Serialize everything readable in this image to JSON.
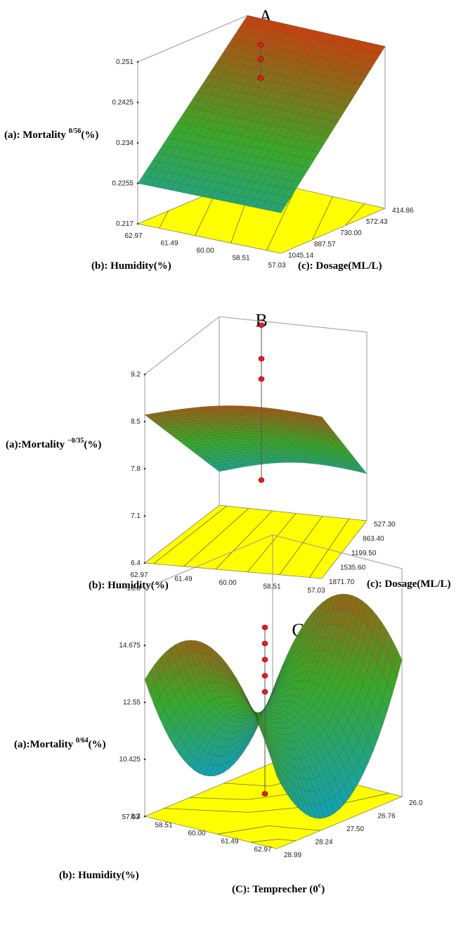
{
  "chart_data": [
    {
      "panel": "A",
      "type": "surface",
      "z_label": "(a): Mortality",
      "z_label_sup": "0/56",
      "z_label_unit": "(%)",
      "x_label": "(b): Humidity(%)",
      "y_label": "(c): Dosage(ML/L)",
      "z_ticks": [
        "0.251",
        "0.2425",
        "0.234",
        "0.2255",
        "0.217"
      ],
      "x_ticks": [
        "62.97",
        "61.49",
        "60.00",
        "58.51",
        "57.03"
      ],
      "y_ticks": [
        "1045.14",
        "887.57",
        "730.00",
        "572.43",
        "414.86"
      ],
      "zlim": [
        0.217,
        0.251
      ],
      "surface_corners": {
        "humidity_62.97_dosage_1045.14": 0.2255,
        "humidity_57.03_dosage_1045.14": 0.2255,
        "humidity_62.97_dosage_414.86": 0.251,
        "humidity_57.03_dosage_414.86": 0.251
      },
      "design_points_z": [
        0.245,
        0.242,
        0.238
      ]
    },
    {
      "panel": "B",
      "type": "surface",
      "z_label": "(a):Mortality",
      "z_label_sup": "−0/35",
      "z_label_unit": "(%)",
      "x_label": "(b): Humidity(%)",
      "y_label": "(c): Dosage(ML/L)",
      "z_ticks": [
        "9.2",
        "8.5",
        "7.8",
        "7.1",
        "6.4"
      ],
      "x_ticks": [
        "62.97",
        "61.49",
        "60.00",
        "58.51",
        "57.03"
      ],
      "y_ticks": [
        "1871.70",
        "1535.60",
        "1199.50",
        "863.40",
        "527.30"
      ],
      "zlim": [
        6.4,
        9.2
      ],
      "surface_corners": {
        "humidity_62.97_dosage_1871.70": 8.6,
        "humidity_57.03_dosage_1871.70": 8.8,
        "humidity_62.97_dosage_527.30": 6.9,
        "humidity_57.03_dosage_527.30": 7.1
      },
      "design_points_z": [
        9.2,
        8.7,
        8.4,
        6.9
      ]
    },
    {
      "panel": "C",
      "type": "surface",
      "z_label": "(a):Mortality",
      "z_label_sup": "0/64",
      "z_label_unit": "(%)",
      "x_label": "(b): Humidity(%)",
      "y_label": "(C): Temprecher (0",
      "y_label_sup": "c",
      "y_label_end": ")",
      "z_ticks": [
        "16.8",
        "14.675",
        "12.55",
        "10.425",
        "8.3"
      ],
      "x_ticks": [
        "57.03",
        "58.51",
        "60.00",
        "61.49",
        "62.97"
      ],
      "y_ticks": [
        "28.99",
        "28.24",
        "27.50",
        "26.76",
        "26.0"
      ],
      "zlim": [
        8.3,
        16.8
      ],
      "surface_shape": "saddle",
      "design_points_z": [
        15.5,
        14.9,
        14.3,
        13.7,
        13.1,
        9.3
      ]
    }
  ],
  "titles": [
    "A",
    "B",
    "C"
  ],
  "colors": {
    "floor": "#ffff00",
    "low": "#0fa0c8",
    "mid": "#3aa82a",
    "high": "#c84010",
    "point": "#e02020"
  }
}
